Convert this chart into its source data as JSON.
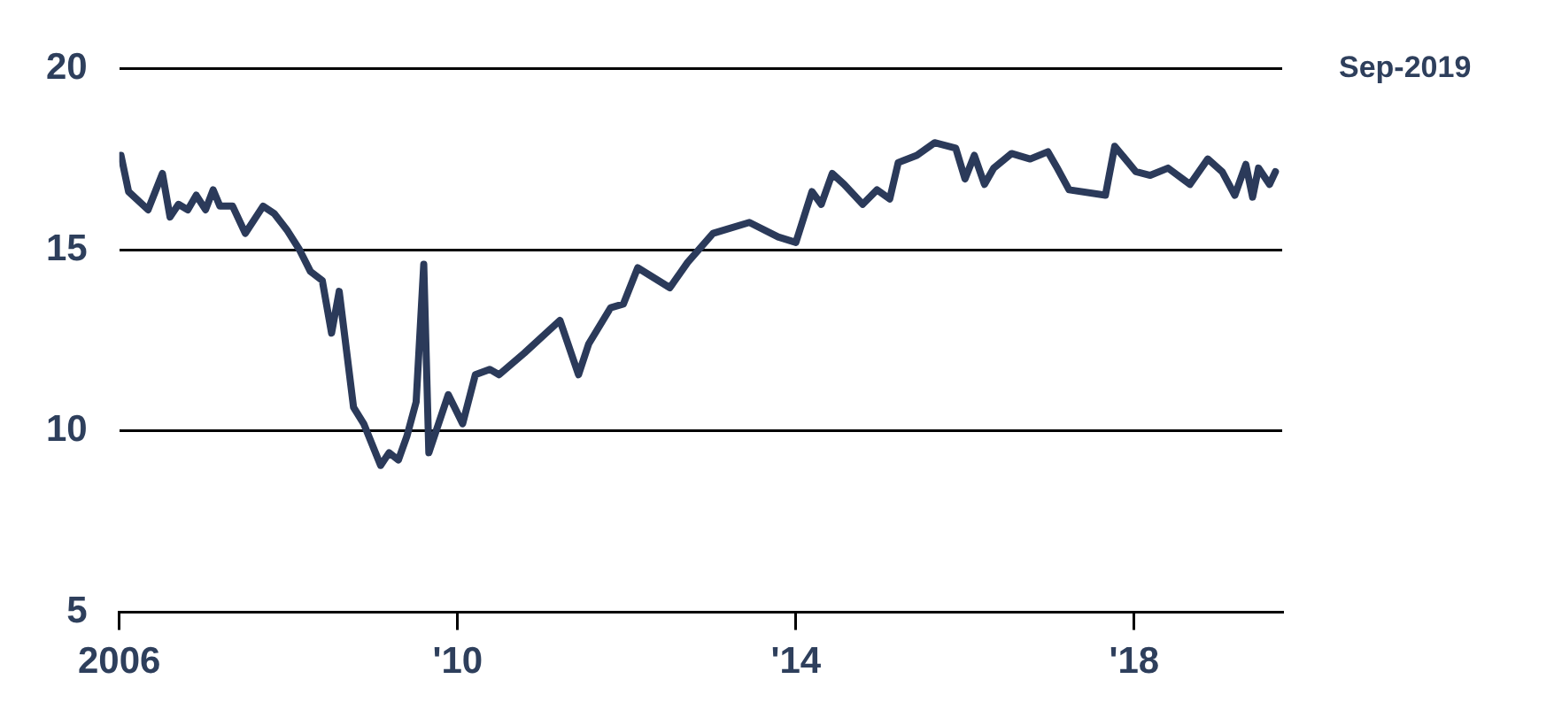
{
  "chart_data": {
    "type": "line",
    "x": [
      2006.02,
      2006.11,
      2006.34,
      2006.51,
      2006.6,
      2006.7,
      2006.81,
      2006.91,
      2007.02,
      2007.11,
      2007.19,
      2007.34,
      2007.49,
      2007.7,
      2007.83,
      2007.98,
      2008.13,
      2008.26,
      2008.4,
      2008.51,
      2008.6,
      2008.77,
      2008.89,
      2009.09,
      2009.19,
      2009.3,
      2009.4,
      2009.51,
      2009.6,
      2009.66,
      2009.89,
      2010.06,
      2010.21,
      2010.38,
      2010.49,
      2010.79,
      2011.21,
      2011.43,
      2011.55,
      2011.81,
      2011.96,
      2012.13,
      2012.51,
      2012.72,
      2013.02,
      2013.45,
      2013.79,
      2014.0,
      2014.19,
      2014.3,
      2014.43,
      2014.57,
      2014.79,
      2014.96,
      2015.11,
      2015.21,
      2015.43,
      2015.64,
      2015.89,
      2016.0,
      2016.11,
      2016.23,
      2016.34,
      2016.55,
      2016.77,
      2016.98,
      2017.09,
      2017.23,
      2017.66,
      2017.77,
      2018.02,
      2018.19,
      2018.4,
      2018.66,
      2018.87,
      2019.04,
      2019.19,
      2019.32,
      2019.4,
      2019.47,
      2019.6,
      2019.67
    ],
    "series": [
      {
        "color": "#2b3a5a",
        "values": [
          17.6,
          16.6,
          16.1,
          17.1,
          15.9,
          16.25,
          16.1,
          16.5,
          16.1,
          16.65,
          16.2,
          16.2,
          15.45,
          16.2,
          16.0,
          15.55,
          15.0,
          14.4,
          14.15,
          12.7,
          13.85,
          10.65,
          10.2,
          9.05,
          9.4,
          9.2,
          9.85,
          10.8,
          14.6,
          9.4,
          11.0,
          10.2,
          11.55,
          11.7,
          11.55,
          12.15,
          13.05,
          11.55,
          12.4,
          13.4,
          13.5,
          14.5,
          13.95,
          14.65,
          15.45,
          15.75,
          15.35,
          15.2,
          16.6,
          16.25,
          17.1,
          16.8,
          16.25,
          16.65,
          16.4,
          17.4,
          17.6,
          17.95,
          17.8,
          16.95,
          17.6,
          16.8,
          17.25,
          17.65,
          17.5,
          17.7,
          17.25,
          16.65,
          16.5,
          17.85,
          17.15,
          17.05,
          17.25,
          16.8,
          17.5,
          17.15,
          16.5,
          17.35,
          16.45,
          17.25,
          16.8,
          17.15
        ]
      }
    ],
    "xlim": [
      2006,
      2019.75
    ],
    "xticks": [
      {
        "value": 2006,
        "label": "2006"
      },
      {
        "value": 2010,
        "label": "'10"
      },
      {
        "value": 2014,
        "label": "'14"
      },
      {
        "value": 2018,
        "label": "'18"
      }
    ],
    "ylim": [
      5,
      20
    ],
    "yticks": [
      5,
      10,
      15,
      20
    ],
    "grid": "y",
    "marker": "none",
    "line_style": "solid",
    "annotations": [
      "Sep-2019"
    ]
  }
}
